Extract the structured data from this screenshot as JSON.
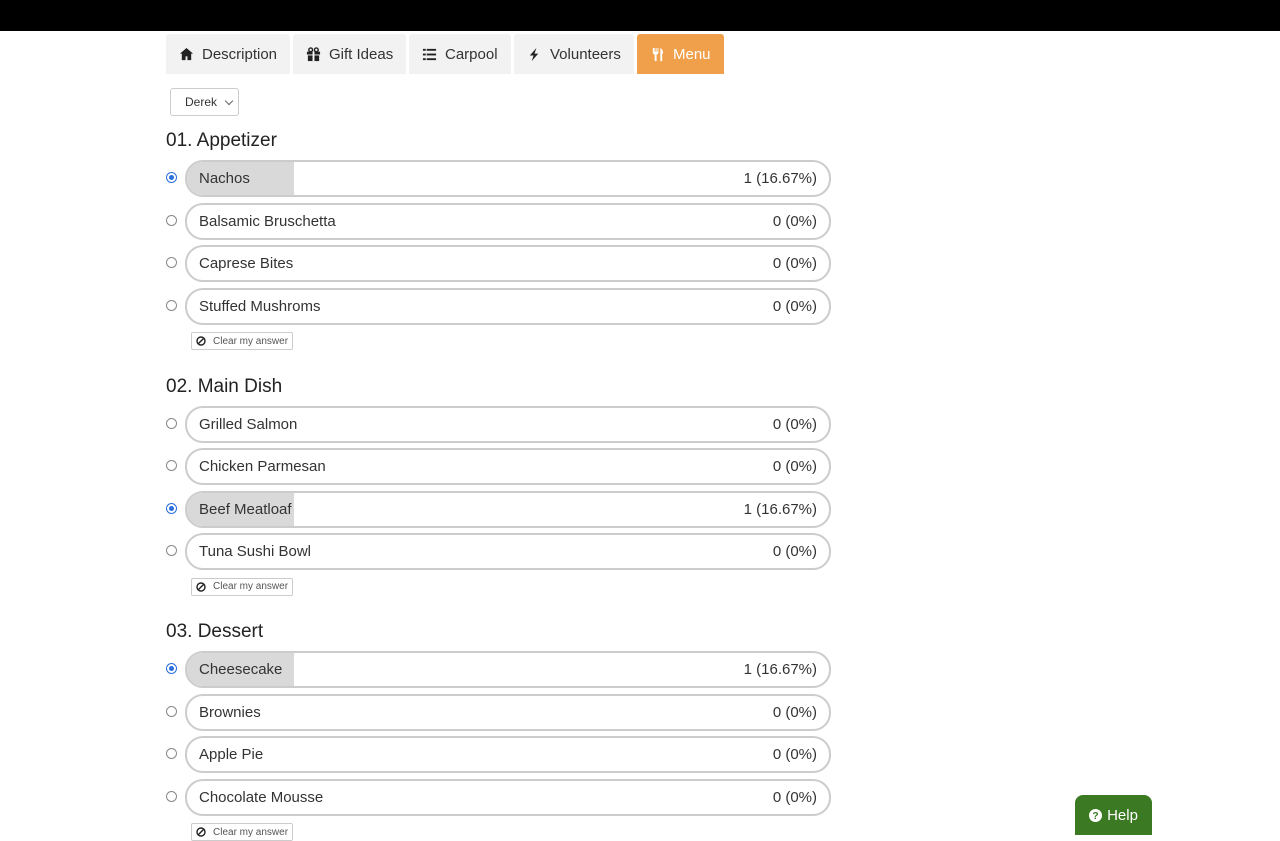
{
  "tabs": [
    {
      "label": "Description"
    },
    {
      "label": "Gift Ideas"
    },
    {
      "label": "Carpool"
    },
    {
      "label": "Volunteers"
    },
    {
      "label": "Menu",
      "active": true
    }
  ],
  "user_select": "Derek",
  "clear_label": "Clear my answer",
  "help": "Help",
  "sections": [
    {
      "title": "01. Appetizer",
      "options": [
        {
          "label": "Nachos",
          "selected": true,
          "percent": 16.67,
          "result": "1 (16.67%)"
        },
        {
          "label": "Balsamic Bruschetta",
          "selected": false,
          "percent": 0,
          "result": "0 (0%)"
        },
        {
          "label": "Caprese Bites",
          "selected": false,
          "percent": 0,
          "result": "0 (0%)"
        },
        {
          "label": "Stuffed Mushroms",
          "selected": false,
          "percent": 0,
          "result": "0 (0%)"
        }
      ]
    },
    {
      "title": "02. Main Dish",
      "options": [
        {
          "label": "Grilled Salmon",
          "selected": false,
          "percent": 0,
          "result": "0 (0%)"
        },
        {
          "label": "Chicken Parmesan",
          "selected": false,
          "percent": 0,
          "result": "0 (0%)"
        },
        {
          "label": "Beef Meatloaf",
          "selected": true,
          "percent": 16.67,
          "result": "1 (16.67%)"
        },
        {
          "label": "Tuna Sushi Bowl",
          "selected": false,
          "percent": 0,
          "result": "0 (0%)"
        }
      ]
    },
    {
      "title": "03. Dessert",
      "options": [
        {
          "label": "Cheesecake",
          "selected": true,
          "percent": 16.67,
          "result": "1 (16.67%)"
        },
        {
          "label": "Brownies",
          "selected": false,
          "percent": 0,
          "result": "0 (0%)"
        },
        {
          "label": "Apple Pie",
          "selected": false,
          "percent": 0,
          "result": "0 (0%)"
        },
        {
          "label": "Chocolate Mousse",
          "selected": false,
          "percent": 0,
          "result": "0 (0%)"
        }
      ]
    }
  ]
}
